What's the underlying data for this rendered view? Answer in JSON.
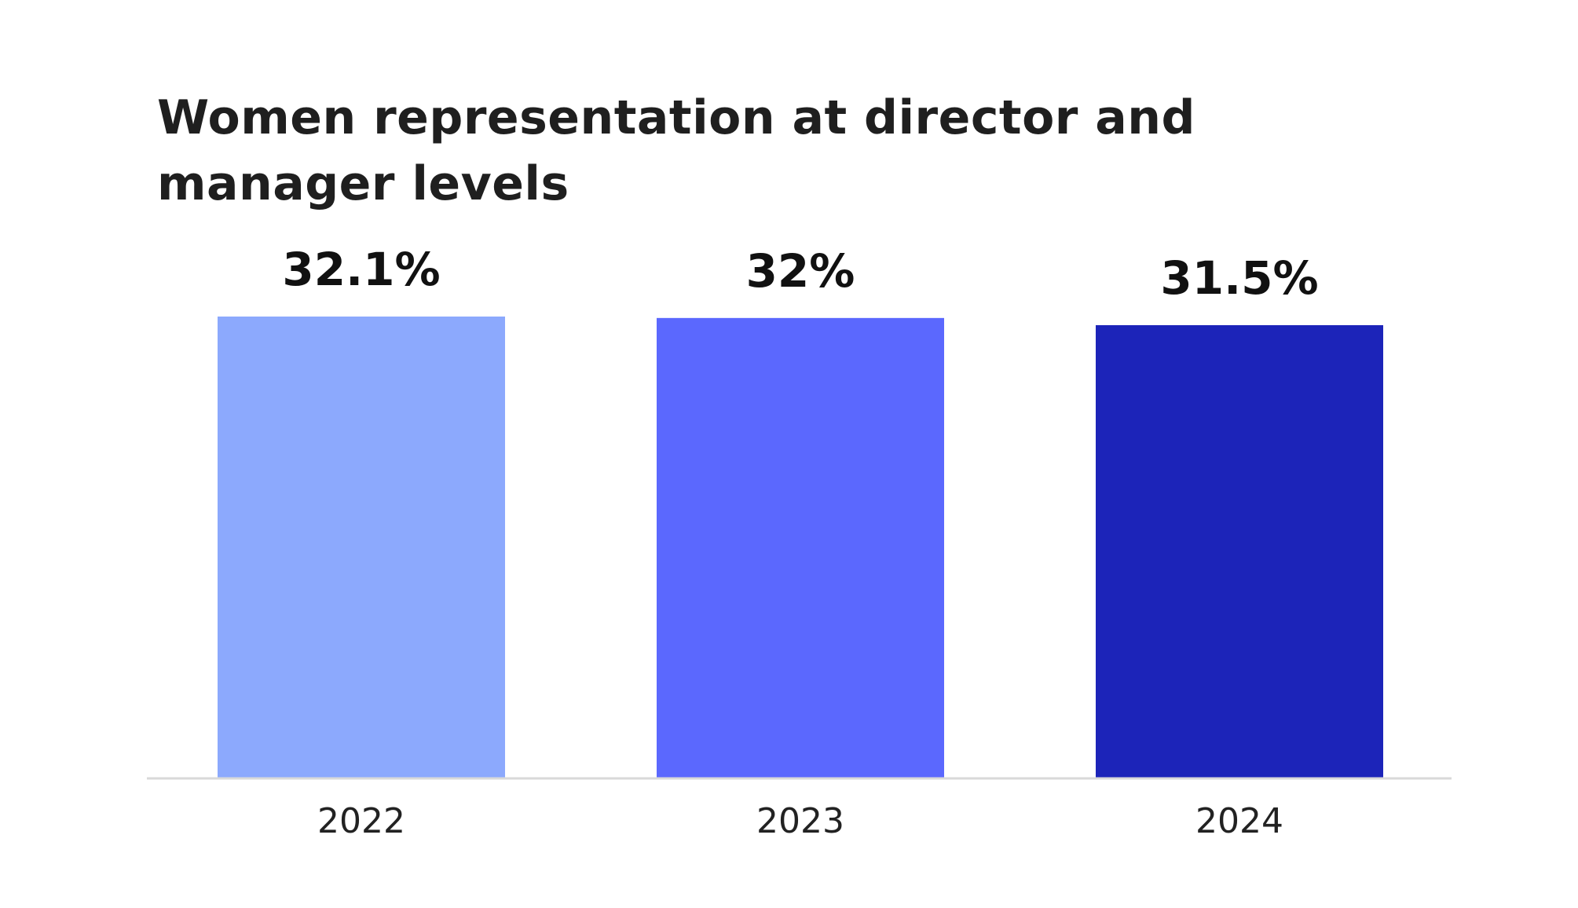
{
  "chart_data": {
    "type": "bar",
    "title": "Women representation at director and manager levels",
    "categories": [
      "2022",
      "2023",
      "2024"
    ],
    "values": [
      32.1,
      32,
      31.5
    ],
    "value_labels": [
      "32.1%",
      "32%",
      "31.5%"
    ],
    "bar_colors": [
      "#8ca9fd",
      "#5b68fe",
      "#1c24b9"
    ],
    "xlabel": "",
    "ylabel": "",
    "ylim": [
      0,
      32.1
    ],
    "grid": false,
    "axis_color": "#d9d9d9"
  }
}
